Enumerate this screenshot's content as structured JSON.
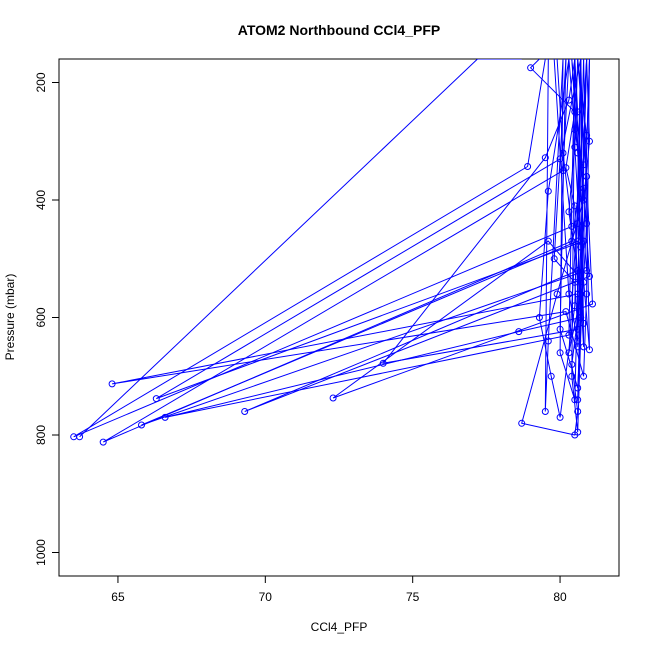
{
  "chart_data": {
    "type": "line",
    "title": "ATOM2 Northbound CCl4_PFP",
    "xlabel": "CCl4_PFP",
    "ylabel": "Pressure (mbar)",
    "xlim": [
      63.0,
      82.0
    ],
    "ylim": [
      1040,
      160
    ],
    "y_reversed": true,
    "x_ticks": [
      65,
      70,
      75,
      80
    ],
    "y_ticks": [
      200,
      400,
      600,
      800,
      1000
    ],
    "grid": false,
    "legend": "none",
    "markers": "open-circle",
    "series_color": "#0000ff",
    "series": [
      {
        "points": [
          [
            80.5,
            160
          ],
          [
            80.6,
            250
          ],
          [
            80.3,
            420
          ],
          [
            80.7,
            560
          ],
          [
            80.4,
            680
          ],
          [
            80.6,
            760
          ],
          [
            80.5,
            800
          ],
          [
            78.7,
            780
          ],
          [
            79.9,
            560
          ],
          [
            80.8,
            400
          ],
          [
            81.0,
            300
          ],
          [
            80.9,
            160
          ]
        ]
      },
      {
        "points": [
          [
            81.0,
            160
          ],
          [
            80.8,
            470
          ],
          [
            66.3,
            738
          ],
          [
            80.0,
            330
          ],
          [
            80.7,
            160
          ]
        ]
      },
      {
        "points": [
          [
            80.2,
            160
          ],
          [
            79.8,
            500
          ],
          [
            80.5,
            540
          ],
          [
            80.6,
            620
          ],
          [
            74.0,
            678
          ],
          [
            79.5,
            328
          ],
          [
            80.3,
            230
          ],
          [
            80.5,
            160
          ]
        ]
      },
      {
        "points": [
          [
            80.4,
            160
          ],
          [
            80.6,
            320
          ],
          [
            80.9,
            520
          ],
          [
            65.8,
            783
          ],
          [
            80.6,
            470
          ],
          [
            80.8,
            650
          ],
          [
            80.7,
            160
          ]
        ]
      },
      {
        "points": [
          [
            79.3,
            160
          ],
          [
            79.0,
            175
          ],
          [
            80.5,
            250
          ],
          [
            80.2,
            345
          ],
          [
            80.5,
            410
          ],
          [
            80.6,
            560
          ],
          [
            64.8,
            713
          ],
          [
            80.2,
            590
          ],
          [
            80.8,
            700
          ],
          [
            80.9,
            560
          ],
          [
            81.0,
            160
          ]
        ]
      },
      {
        "points": [
          [
            80.3,
            160
          ],
          [
            80.5,
            280
          ],
          [
            80.8,
            380
          ],
          [
            81.0,
            530
          ],
          [
            69.3,
            760
          ],
          [
            80.6,
            520
          ],
          [
            80.8,
            610
          ],
          [
            80.5,
            160
          ]
        ]
      },
      {
        "points": [
          [
            80.6,
            160
          ],
          [
            80.9,
            290
          ],
          [
            80.4,
            470
          ],
          [
            64.5,
            812
          ],
          [
            80.1,
            350
          ],
          [
            80.3,
            160
          ]
        ]
      },
      {
        "points": [
          [
            80.6,
            160
          ],
          [
            80.9,
            360
          ],
          [
            81.1,
            577
          ],
          [
            72.3,
            737
          ],
          [
            79.6,
            470
          ],
          [
            80.8,
            540
          ],
          [
            80.3,
            660
          ],
          [
            80.9,
            160
          ]
        ]
      },
      {
        "points": [
          [
            79.9,
            160
          ],
          [
            80.1,
            320
          ],
          [
            80.4,
            445
          ],
          [
            63.5,
            803
          ],
          [
            78.9,
            343
          ],
          [
            79.5,
            160
          ]
        ]
      },
      {
        "points": [
          [
            80.7,
            160
          ],
          [
            80.6,
            440
          ],
          [
            80.7,
            600
          ],
          [
            78.6,
            624
          ],
          [
            66.6,
            770
          ],
          [
            80.3,
            630
          ],
          [
            80.5,
            160
          ]
        ]
      },
      {
        "points": [
          [
            79.8,
            160
          ],
          [
            80.3,
            560
          ],
          [
            80.6,
            640
          ],
          [
            80.7,
            160
          ]
        ]
      },
      {
        "points": [
          [
            80.9,
            160
          ],
          [
            80.7,
            480
          ],
          [
            81.0,
            655
          ],
          [
            80.8,
            160
          ]
        ]
      },
      {
        "points": [
          [
            80.1,
            160
          ],
          [
            80.0,
            660
          ],
          [
            80.5,
            740
          ],
          [
            80.8,
            160
          ]
        ]
      },
      {
        "points": [
          [
            80.3,
            160
          ],
          [
            79.6,
            385
          ],
          [
            79.3,
            600
          ],
          [
            79.7,
            700
          ],
          [
            80.0,
            770
          ],
          [
            80.5,
            580
          ],
          [
            80.7,
            160
          ]
        ]
      },
      {
        "points": [
          [
            80.5,
            160
          ],
          [
            80.4,
            700
          ],
          [
            80.6,
            795
          ],
          [
            81.0,
            160
          ]
        ]
      },
      {
        "points": [
          [
            80.2,
            160
          ],
          [
            80.0,
            620
          ],
          [
            80.6,
            720
          ],
          [
            80.9,
            440
          ],
          [
            80.4,
            160
          ]
        ]
      },
      {
        "points": [
          [
            80.1,
            160
          ],
          [
            79.6,
            640
          ],
          [
            79.5,
            760
          ],
          [
            79.6,
            160
          ]
        ]
      },
      {
        "points": [
          [
            80.7,
            160
          ],
          [
            80.8,
            340
          ],
          [
            80.7,
            600
          ],
          [
            80.6,
            740
          ],
          [
            80.9,
            160
          ]
        ]
      },
      {
        "points": [
          [
            80.6,
            160
          ],
          [
            80.5,
            310
          ],
          [
            80.7,
            480
          ],
          [
            80.6,
            650
          ],
          [
            80.9,
            160
          ]
        ]
      },
      {
        "points": [
          [
            78.7,
            160
          ],
          [
            77.2,
            160
          ],
          [
            63.7,
            803
          ]
        ]
      }
    ]
  }
}
